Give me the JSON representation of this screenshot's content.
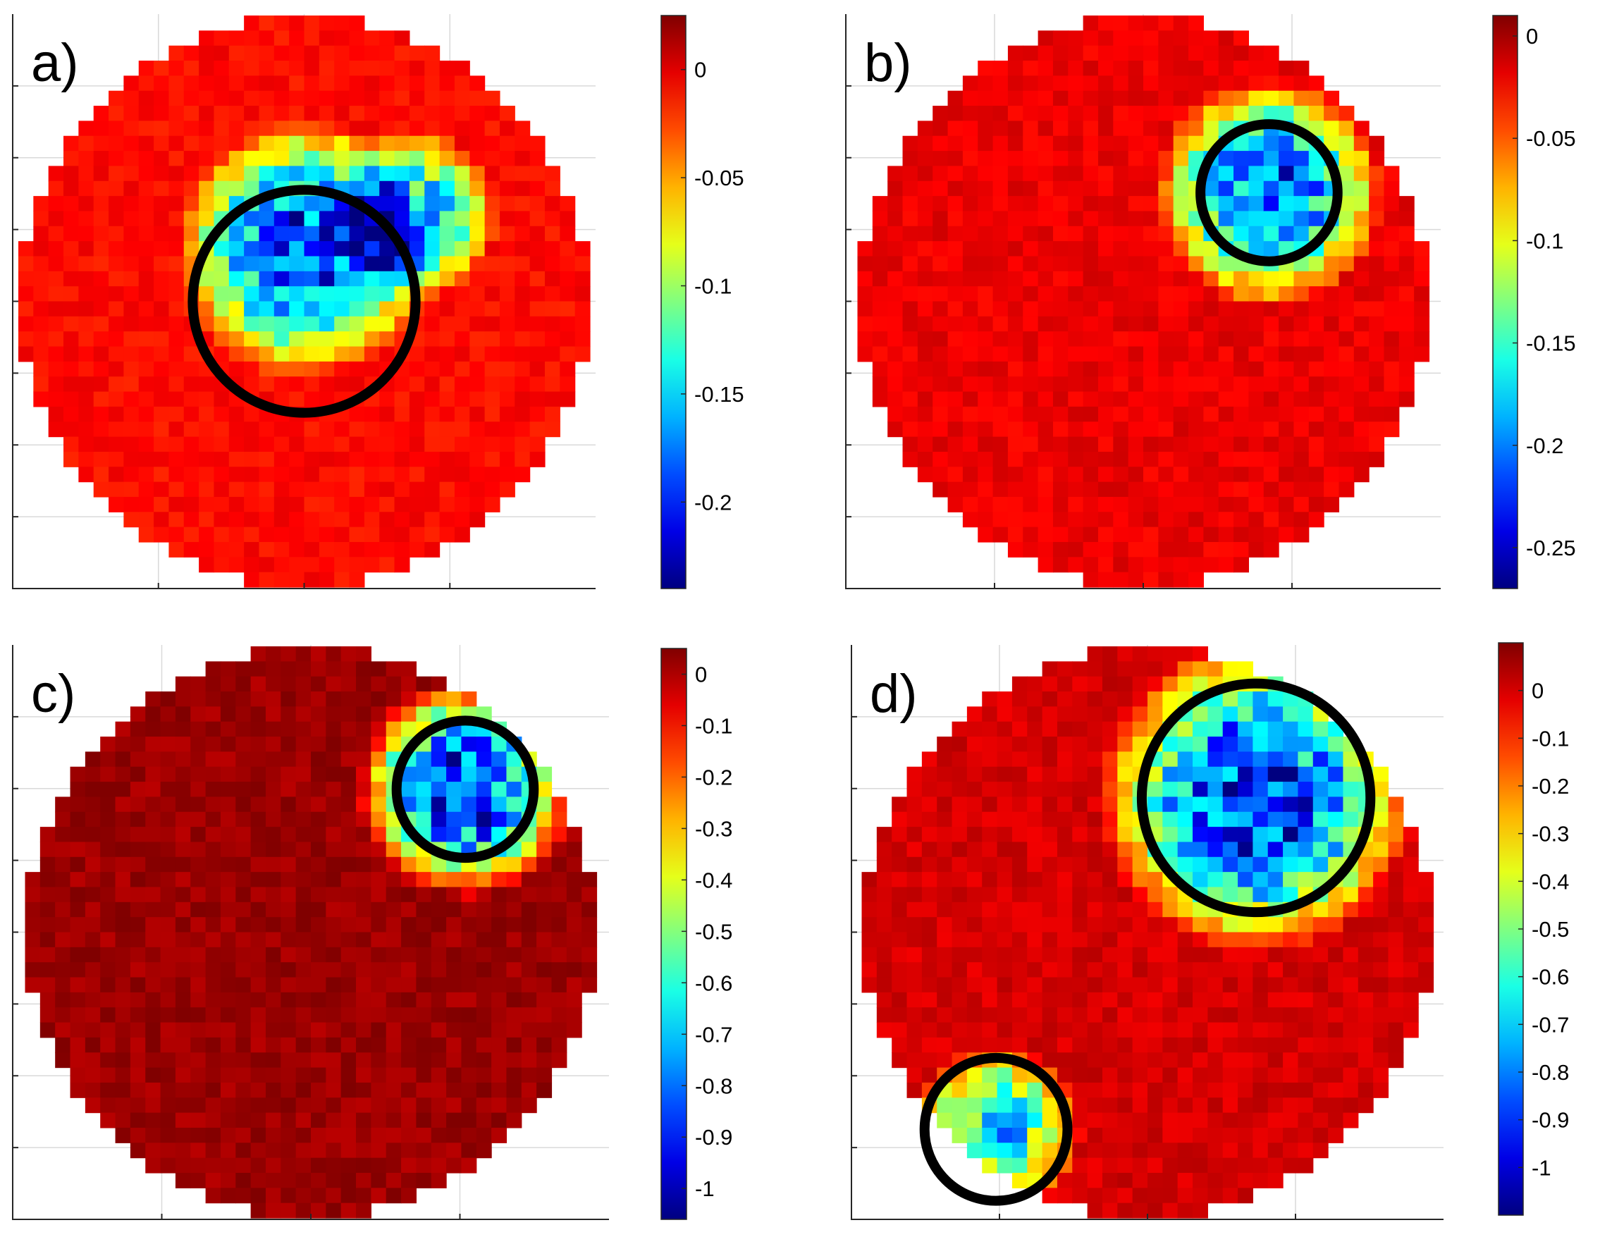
{
  "chart_data": [
    {
      "panel_label": "a)",
      "type": "heatmap",
      "colormap": "jet",
      "grid": true,
      "shape": "circular wafer map",
      "clim": [
        -0.24,
        0.025
      ],
      "colorbar_ticks": [
        0,
        -0.05,
        -0.1,
        -0.15,
        -0.2
      ],
      "colorbar_tick_labels": [
        "0",
        "-0.05",
        "-0.1",
        "-0.15",
        "-0.2"
      ],
      "hotspots": [
        {
          "center": [
            0.0,
            0.18
          ],
          "radius": 0.45,
          "min_value": -0.2
        },
        {
          "center": [
            0.38,
            0.3
          ],
          "radius": 0.3,
          "min_value": -0.16
        }
      ],
      "background_value": -0.01,
      "circles": [
        {
          "center": [
            0.0,
            0.0
          ],
          "radius": 0.39
        }
      ]
    },
    {
      "panel_label": "b)",
      "type": "heatmap",
      "colormap": "jet",
      "grid": true,
      "shape": "circular wafer map",
      "clim": [
        -0.27,
        0.01
      ],
      "colorbar_ticks": [
        0,
        -0.05,
        -0.1,
        -0.15,
        -0.2,
        -0.25
      ],
      "colorbar_tick_labels": [
        "0",
        "-0.05",
        "-0.1",
        "-0.15",
        "-0.2",
        "-0.25"
      ],
      "hotspots": [
        {
          "center": [
            0.44,
            0.38
          ],
          "radius": 0.4,
          "min_value": -0.22
        }
      ],
      "background_value": -0.02,
      "circles": [
        {
          "center": [
            0.44,
            0.38
          ],
          "radius": 0.24
        }
      ]
    },
    {
      "panel_label": "c)",
      "type": "heatmap",
      "colormap": "jet",
      "grid": true,
      "shape": "circular wafer map",
      "clim": [
        -1.06,
        0.05
      ],
      "colorbar_ticks": [
        0,
        -0.1,
        -0.2,
        -0.3,
        -0.4,
        -0.5,
        -0.6,
        -0.7,
        -0.8,
        -0.9,
        -1
      ],
      "colorbar_tick_labels": [
        "0",
        "-0.1",
        "-0.2",
        "-0.3",
        "-0.4",
        "-0.5",
        "-0.6",
        "-0.7",
        "-0.8",
        "-0.9",
        "-1"
      ],
      "hotspots": [
        {
          "center": [
            0.54,
            0.5
          ],
          "radius": 0.38,
          "min_value": -0.95
        }
      ],
      "background_value": 0.02,
      "circles": [
        {
          "center": [
            0.54,
            0.5
          ],
          "radius": 0.24
        }
      ]
    },
    {
      "panel_label": "d)",
      "type": "heatmap",
      "colormap": "jet",
      "grid": true,
      "shape": "circular wafer map",
      "clim": [
        -1.1,
        0.1
      ],
      "colorbar_ticks": [
        0,
        -0.1,
        -0.2,
        -0.3,
        -0.4,
        -0.5,
        -0.6,
        -0.7,
        -0.8,
        -0.9,
        -1
      ],
      "colorbar_tick_labels": [
        "0",
        "-0.1",
        "-0.2",
        "-0.3",
        "-0.4",
        "-0.5",
        "-0.6",
        "-0.7",
        "-0.8",
        "-0.9",
        "-1"
      ],
      "hotspots": [
        {
          "center": [
            0.38,
            0.47
          ],
          "radius": 0.55,
          "min_value": -0.95
        },
        {
          "center": [
            -0.53,
            -0.69
          ],
          "radius": 0.3,
          "min_value": -0.7
        }
      ],
      "background_value": 0.0,
      "circles": [
        {
          "center": [
            0.38,
            0.47
          ],
          "radius": 0.4
        },
        {
          "center": [
            -0.53,
            -0.69
          ],
          "radius": 0.25
        }
      ]
    }
  ]
}
